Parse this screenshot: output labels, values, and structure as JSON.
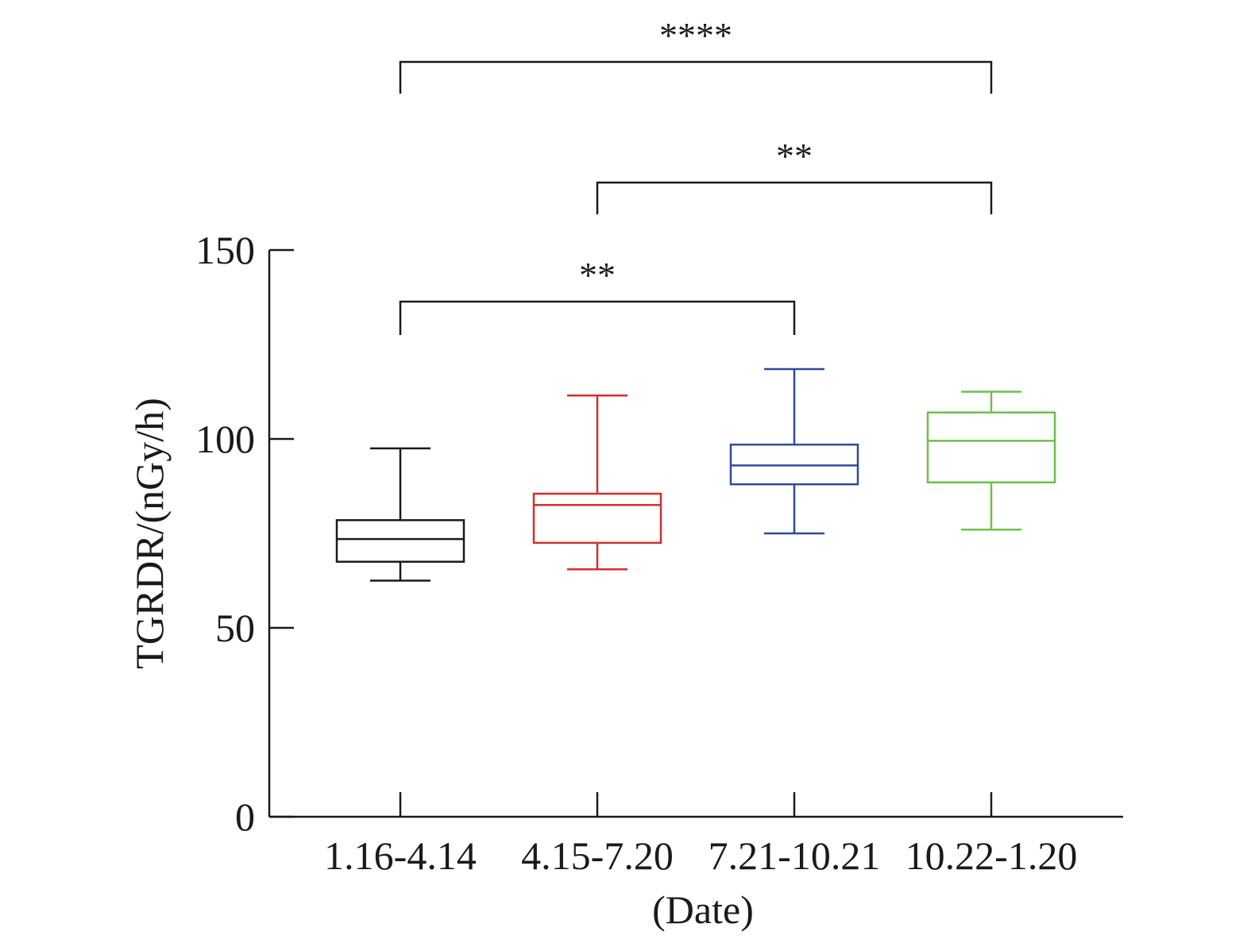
{
  "chart_data": {
    "type": "box",
    "ylabel": "TGRDR/(nGy/h)",
    "xlabel": "(Date)",
    "ylim": [
      0,
      150
    ],
    "yticks": [
      "0",
      "50",
      "100",
      "150"
    ],
    "grid": false,
    "categories": [
      "1.16-4.14",
      "4.15-7.20",
      "7.21-10.21",
      "10.22-1.20"
    ],
    "boxes": [
      {
        "category": "1.16-4.14",
        "color": "#1a1a1a",
        "min": 62.5,
        "q1": 67.5,
        "median": 73.5,
        "q3": 78.5,
        "max": 97.5
      },
      {
        "category": "4.15-7.20",
        "color": "#d62d2d",
        "min": 65.5,
        "q1": 72.5,
        "median": 82.5,
        "q3": 85.5,
        "max": 111.5
      },
      {
        "category": "7.21-10.21",
        "color": "#2e4a9a",
        "min": 75.0,
        "q1": 88.0,
        "median": 93.0,
        "q3": 98.5,
        "max": 118.5
      },
      {
        "category": "10.22-1.20",
        "color": "#6cc04a",
        "min": 76.0,
        "q1": 88.5,
        "median": 99.5,
        "q3": 107.0,
        "max": 112.5
      }
    ],
    "significance": [
      {
        "from": 0,
        "to": 3,
        "label": "****"
      },
      {
        "from": 1,
        "to": 3,
        "label": "**"
      },
      {
        "from": 0,
        "to": 2,
        "label": "**"
      }
    ]
  }
}
